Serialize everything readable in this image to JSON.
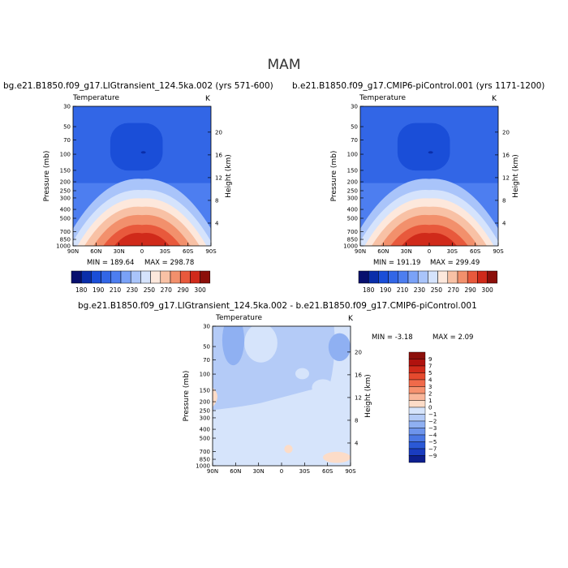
{
  "figure": {
    "season": "MAM",
    "variable": "Temperature",
    "unit": "K"
  },
  "panels": [
    {
      "id": "case1",
      "title": "bg.e21.B1850.f09_g17.LIGtransient_124.5ka.002 (yrs 571-600)",
      "min_label": "MIN = 189.64",
      "max_label": "MAX = 298.78"
    },
    {
      "id": "case2",
      "title": "b.e21.B1850.f09_g17.CMIP6-piControl.001 (yrs 1171-1200)",
      "min_label": "MIN = 191.19",
      "max_label": "MAX = 299.49"
    },
    {
      "id": "diff",
      "title": "bg.e21.B1850.f09_g17.LIGtransient_124.5ka.002 - b.e21.B1850.f09_g17.CMIP6-piControl.001",
      "min_label": "MIN = -3.18",
      "max_label": "MAX = 2.09"
    }
  ],
  "chart_data": [
    {
      "type": "heatmap",
      "subtype": "latitude-pressure contour",
      "title": "bg.e21.B1850.f09_g17.LIGtransient_124.5ka.002 (yrs 571-600)",
      "variable": "Temperature",
      "unit": "K",
      "ylabel": "Pressure (mb)",
      "y2label": "Height (km)",
      "x_ticks": [
        "90N",
        "60N",
        "30N",
        "0",
        "30S",
        "60S",
        "90S"
      ],
      "x_values": [
        90,
        60,
        30,
        0,
        -30,
        -60,
        -90
      ],
      "y_ticks": [
        30,
        50,
        70,
        100,
        150,
        200,
        250,
        300,
        400,
        500,
        700,
        850,
        1000
      ],
      "y2_ticks": [
        4,
        8,
        12,
        16,
        20
      ],
      "log_y": true,
      "y_reversed": true,
      "min": 189.64,
      "max": 298.78,
      "levels": [
        180,
        190,
        200,
        210,
        220,
        230,
        240,
        250,
        260,
        270,
        280,
        290,
        300
      ],
      "level_labels": [
        "180",
        "190",
        "210",
        "230",
        "250",
        "270",
        "290",
        "300"
      ]
    },
    {
      "type": "heatmap",
      "subtype": "latitude-pressure contour",
      "title": "b.e21.B1850.f09_g17.CMIP6-piControl.001 (yrs 1171-1200)",
      "variable": "Temperature",
      "unit": "K",
      "ylabel": "Pressure (mb)",
      "y2label": "Height (km)",
      "x_ticks": [
        "90N",
        "60N",
        "30N",
        "0",
        "30S",
        "60S",
        "90S"
      ],
      "x_values": [
        90,
        60,
        30,
        0,
        -30,
        -60,
        -90
      ],
      "y_ticks": [
        30,
        50,
        70,
        100,
        150,
        200,
        250,
        300,
        400,
        500,
        700,
        850,
        1000
      ],
      "y2_ticks": [
        4,
        8,
        12,
        16,
        20
      ],
      "log_y": true,
      "y_reversed": true,
      "min": 191.19,
      "max": 299.49,
      "levels": [
        180,
        190,
        200,
        210,
        220,
        230,
        240,
        250,
        260,
        270,
        280,
        290,
        300
      ],
      "level_labels": [
        "180",
        "190",
        "210",
        "230",
        "250",
        "270",
        "290",
        "300"
      ]
    },
    {
      "type": "heatmap",
      "subtype": "latitude-pressure contour difference",
      "title": "bg.e21.B1850.f09_g17.LIGtransient_124.5ka.002 - b.e21.B1850.f09_g17.CMIP6-piControl.001",
      "variable": "Temperature",
      "unit": "K",
      "ylabel": "Pressure (mb)",
      "y2label": "Height (km)",
      "x_ticks": [
        "90N",
        "60N",
        "30N",
        "0",
        "30S",
        "60S",
        "90S"
      ],
      "x_values": [
        90,
        60,
        30,
        0,
        -30,
        -60,
        -90
      ],
      "y_ticks": [
        30,
        50,
        70,
        100,
        150,
        200,
        250,
        300,
        400,
        500,
        700,
        850,
        1000
      ],
      "y2_ticks": [
        4,
        8,
        12,
        16,
        20
      ],
      "log_y": true,
      "y_reversed": true,
      "min": -3.18,
      "max": 2.09,
      "levels": [
        -9,
        -7,
        -5,
        -4,
        -3,
        -2,
        -1,
        0,
        1,
        2,
        3,
        4,
        5,
        7,
        9
      ],
      "level_labels": [
        "9",
        "7",
        "5",
        "4",
        "3",
        "2",
        "1",
        "0",
        "−1",
        "−2",
        "−3",
        "−4",
        "−5",
        "−7",
        "−9"
      ]
    }
  ],
  "palettes": {
    "abs": [
      "#08106e",
      "#0a2eaa",
      "#1a4ed8",
      "#3266e6",
      "#4d7ef0",
      "#7aa2f7",
      "#a9c4fa",
      "#d5e3fc",
      "#fde8dc",
      "#f8c1a5",
      "#f2906c",
      "#e8593c",
      "#d02a1a",
      "#8c0f0a"
    ],
    "diff": [
      "#8c0f0a",
      "#b0120e",
      "#d02a1a",
      "#e54a2e",
      "#f06a4a",
      "#f6916f",
      "#f9b69a",
      "#fcdcc8",
      "#d6e4fb",
      "#b4cbf7",
      "#8fb0f2",
      "#6d94ec",
      "#4a77e4",
      "#2b59d6",
      "#1a3cc0",
      "#0d1f8e"
    ]
  }
}
